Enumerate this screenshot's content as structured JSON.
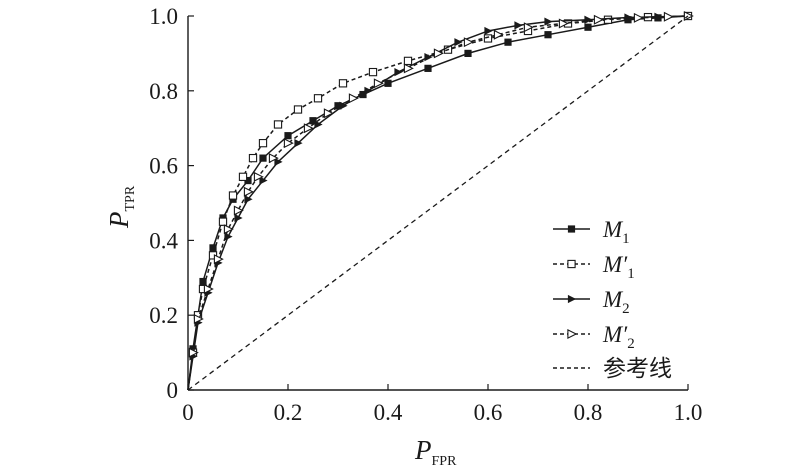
{
  "chart_data": {
    "type": "line",
    "xlabel": {
      "main": "P",
      "sub": "FPR"
    },
    "ylabel": {
      "main": "P",
      "sub": "TPR"
    },
    "xlim": [
      0,
      1
    ],
    "ylim": [
      0,
      1
    ],
    "x_ticks": [
      0,
      0.2,
      0.4,
      0.6,
      0.8,
      1.0
    ],
    "x_tick_labels": [
      "0",
      "0.2",
      "0.4",
      "0.6",
      "0.8",
      "1.0"
    ],
    "y_ticks": [
      0,
      0.2,
      0.4,
      0.6,
      0.8,
      1.0
    ],
    "y_tick_labels": [
      "0",
      "0.2",
      "0.4",
      "0.6",
      "0.8",
      "1.0"
    ],
    "grid": false,
    "legend_position": "bottom-right",
    "series": [
      {
        "name": "M1",
        "name_main": "M",
        "name_sub": "1",
        "line": "solid",
        "marker": "filled-square",
        "color": "#1a1a1a",
        "x": [
          0,
          0.01,
          0.02,
          0.03,
          0.05,
          0.07,
          0.09,
          0.12,
          0.15,
          0.2,
          0.25,
          0.3,
          0.35,
          0.4,
          0.48,
          0.56,
          0.64,
          0.72,
          0.8,
          0.88,
          0.94,
          1.0
        ],
        "y": [
          0,
          0.11,
          0.2,
          0.29,
          0.38,
          0.46,
          0.51,
          0.56,
          0.62,
          0.68,
          0.72,
          0.76,
          0.79,
          0.82,
          0.86,
          0.9,
          0.93,
          0.95,
          0.97,
          0.99,
          0.995,
          1.0
        ]
      },
      {
        "name": "M'1",
        "name_main": "M′",
        "name_sub": "1",
        "line": "dashed",
        "marker": "open-square",
        "color": "#1a1a1a",
        "x": [
          0,
          0.01,
          0.02,
          0.03,
          0.05,
          0.07,
          0.09,
          0.11,
          0.13,
          0.15,
          0.18,
          0.22,
          0.26,
          0.31,
          0.37,
          0.44,
          0.52,
          0.6,
          0.68,
          0.76,
          0.84,
          0.92,
          1.0
        ],
        "y": [
          0,
          0.1,
          0.2,
          0.27,
          0.36,
          0.45,
          0.52,
          0.57,
          0.62,
          0.66,
          0.71,
          0.75,
          0.78,
          0.82,
          0.85,
          0.88,
          0.91,
          0.94,
          0.96,
          0.98,
          0.99,
          0.997,
          1.0
        ]
      },
      {
        "name": "M2",
        "name_main": "M",
        "name_sub": "2",
        "line": "solid",
        "marker": "filled-triangle",
        "color": "#1a1a1a",
        "x": [
          0,
          0.01,
          0.02,
          0.04,
          0.06,
          0.08,
          0.1,
          0.12,
          0.15,
          0.18,
          0.22,
          0.26,
          0.31,
          0.36,
          0.42,
          0.48,
          0.54,
          0.6,
          0.66,
          0.72,
          0.8,
          0.88,
          0.94,
          1.0
        ],
        "y": [
          0,
          0.09,
          0.18,
          0.26,
          0.34,
          0.41,
          0.46,
          0.51,
          0.56,
          0.61,
          0.66,
          0.71,
          0.76,
          0.8,
          0.85,
          0.89,
          0.93,
          0.96,
          0.975,
          0.985,
          0.99,
          0.996,
          0.998,
          1.0
        ]
      },
      {
        "name": "M'2",
        "name_main": "M′",
        "name_sub": "2",
        "line": "dashed",
        "marker": "open-triangle",
        "color": "#1a1a1a",
        "x": [
          0,
          0.01,
          0.02,
          0.04,
          0.06,
          0.08,
          0.1,
          0.12,
          0.14,
          0.17,
          0.2,
          0.24,
          0.28,
          0.33,
          0.38,
          0.44,
          0.5,
          0.56,
          0.62,
          0.68,
          0.75,
          0.82,
          0.9,
          0.96,
          1.0
        ],
        "y": [
          0,
          0.1,
          0.19,
          0.27,
          0.35,
          0.43,
          0.48,
          0.53,
          0.57,
          0.62,
          0.66,
          0.7,
          0.74,
          0.78,
          0.82,
          0.86,
          0.9,
          0.93,
          0.95,
          0.97,
          0.98,
          0.99,
          0.995,
          0.998,
          1.0
        ]
      },
      {
        "name": "参考线",
        "line": "dashed",
        "marker": "none",
        "color": "#1a1a1a",
        "x": [
          0,
          1
        ],
        "y": [
          0,
          1
        ]
      }
    ]
  }
}
